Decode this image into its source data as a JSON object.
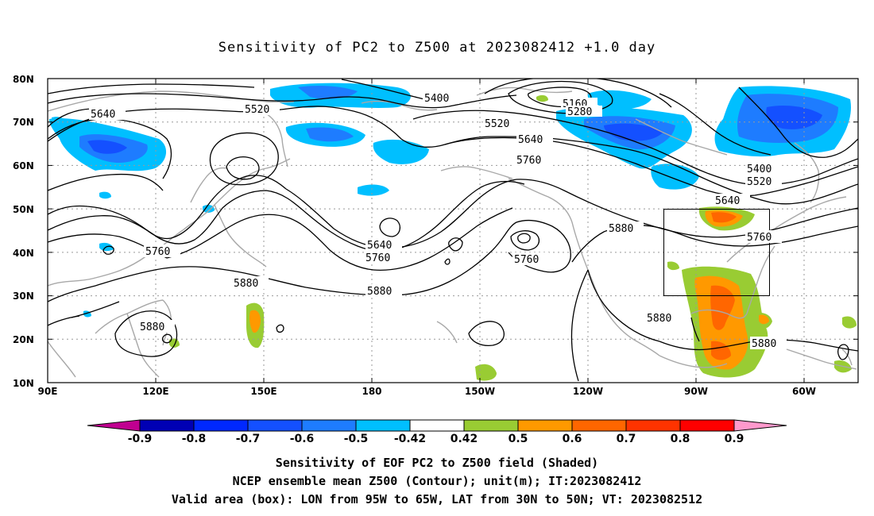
{
  "title": "Sensitivity of PC2 to Z500 at 2023082412 +1.0 day",
  "lat_labels": [
    "80N",
    "70N",
    "60N",
    "50N",
    "40N",
    "30N",
    "20N",
    "10N"
  ],
  "lon_labels": [
    "90E",
    "120E",
    "150E",
    "180",
    "150W",
    "120W",
    "90W",
    "60W"
  ],
  "contour_labels": [
    {
      "id": "c5640a",
      "text": "5640"
    },
    {
      "id": "c5520a",
      "text": "5520"
    },
    {
      "id": "c5400a",
      "text": "5400"
    },
    {
      "id": "c5160",
      "text": "5160"
    },
    {
      "id": "c5280",
      "text": "5280"
    },
    {
      "id": "c5520b",
      "text": "5520"
    },
    {
      "id": "c5640b",
      "text": "5640"
    },
    {
      "id": "c5760a",
      "text": "5760"
    },
    {
      "id": "c5400b",
      "text": "5400"
    },
    {
      "id": "c5520c",
      "text": "5520"
    },
    {
      "id": "c5640c",
      "text": "5640"
    },
    {
      "id": "c5760b",
      "text": "5760"
    },
    {
      "id": "c5880a",
      "text": "5880"
    },
    {
      "id": "c5760c",
      "text": "5760"
    },
    {
      "id": "c5640d",
      "text": "5640"
    },
    {
      "id": "c5760d",
      "text": "5760"
    },
    {
      "id": "c5760e",
      "text": "5760"
    },
    {
      "id": "c5880b",
      "text": "5880"
    },
    {
      "id": "c5880c",
      "text": "5880"
    },
    {
      "id": "c5880d",
      "text": "5880"
    },
    {
      "id": "c5880e",
      "text": "5880"
    },
    {
      "id": "c5880f",
      "text": "5880"
    }
  ],
  "colorbar": {
    "colors": [
      "#c00090",
      "#0000b4",
      "#0028ff",
      "#1450ff",
      "#1e7cff",
      "#00bfff",
      "#ffffff",
      "#99cc33",
      "#ff9900",
      "#ff6600",
      "#ff3300",
      "#ff0000",
      "#ff99cc"
    ],
    "tick_labels": [
      "-0.9",
      "-0.8",
      "-0.7",
      "-0.6",
      "-0.5",
      "-0.42",
      "0.42",
      "0.5",
      "0.6",
      "0.7",
      "0.8",
      "0.9"
    ]
  },
  "captions": {
    "line1": "Sensitivity of EOF PC2 to Z500 field (Shaded)",
    "line2": "NCEP ensemble mean Z500 (Contour); unit(m); IT:2023082412",
    "line3": "Valid area (box): LON from 95W to 65W, LAT from 30N to 50N; VT: 2023082512"
  },
  "colors": {
    "coast": "#a8a8a8",
    "grid": "#999999",
    "contour": "#000000"
  }
}
